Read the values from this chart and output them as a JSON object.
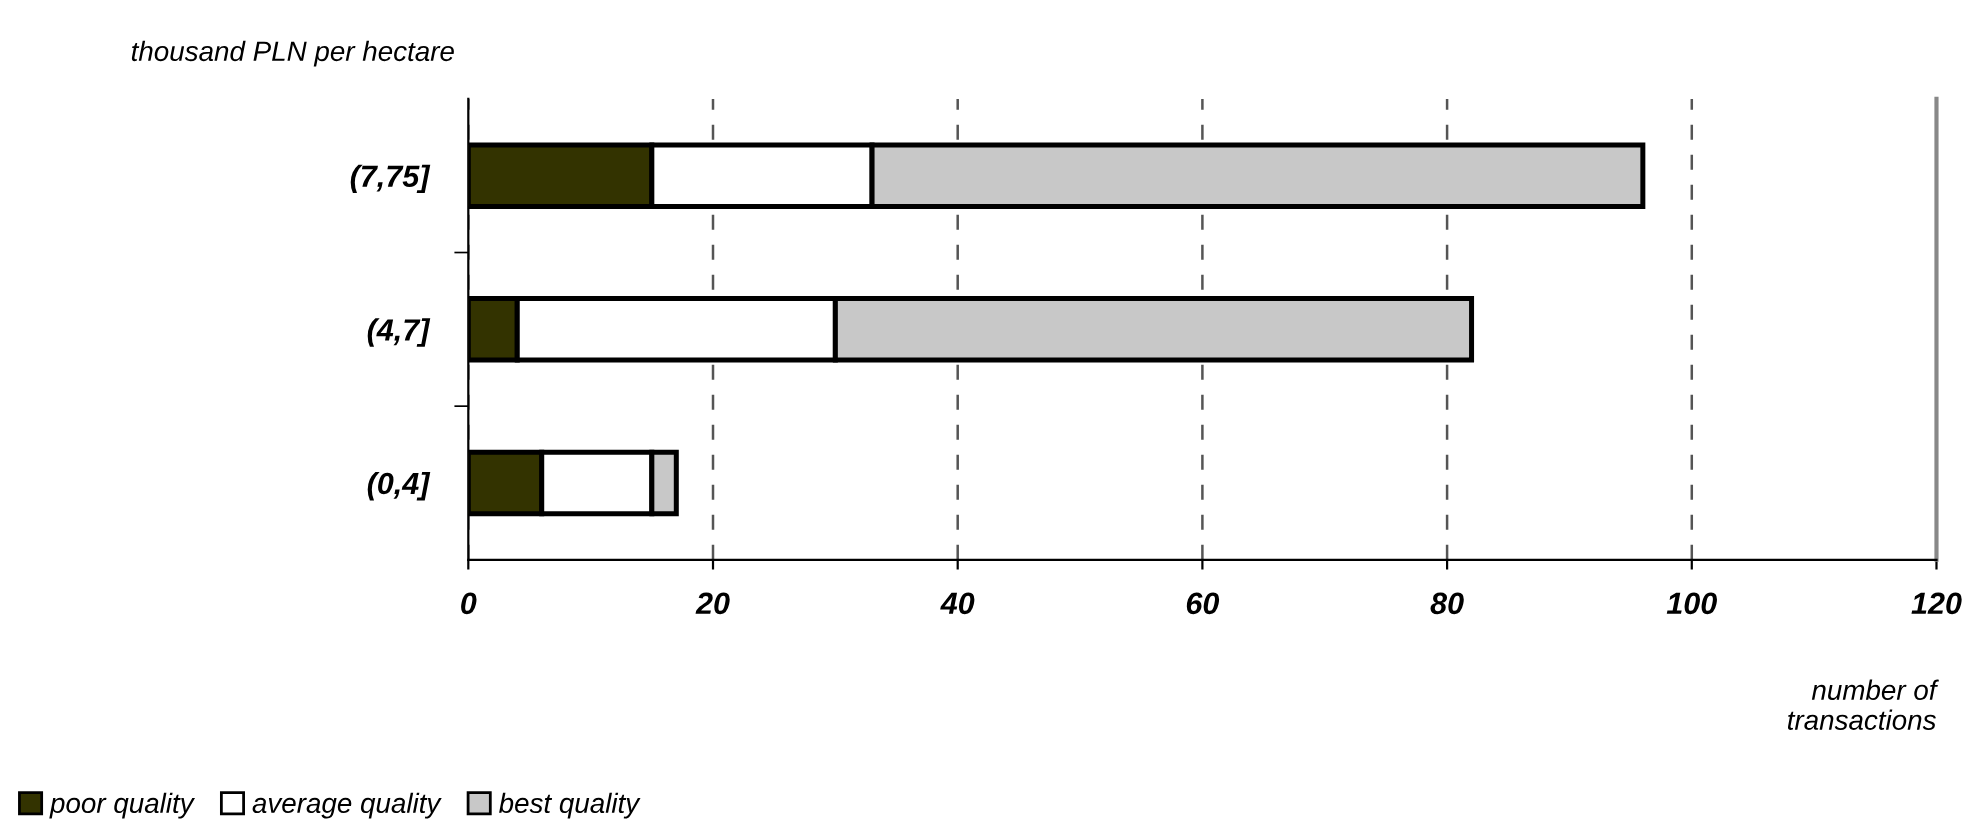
{
  "chart_data": {
    "type": "bar",
    "orientation": "horizontal",
    "stacked": true,
    "xlabel": "number of transactions",
    "ylabel": "thousand PLN per hectare",
    "categories": [
      "(7,75]",
      "(4,7]",
      "(0,4]"
    ],
    "series": [
      {
        "name": "poor quality",
        "color": "#333300",
        "values": [
          15,
          4,
          6
        ]
      },
      {
        "name": "average quality",
        "color": "#ffffff",
        "values": [
          18,
          26,
          9
        ]
      },
      {
        "name": "best quality",
        "color": "#c8c8c8",
        "values": [
          63,
          52,
          2
        ]
      }
    ],
    "xlim": [
      0,
      120
    ],
    "xticks": [
      0,
      20,
      40,
      60,
      80,
      100,
      120
    ],
    "grid": "x",
    "legend": "bottom"
  }
}
